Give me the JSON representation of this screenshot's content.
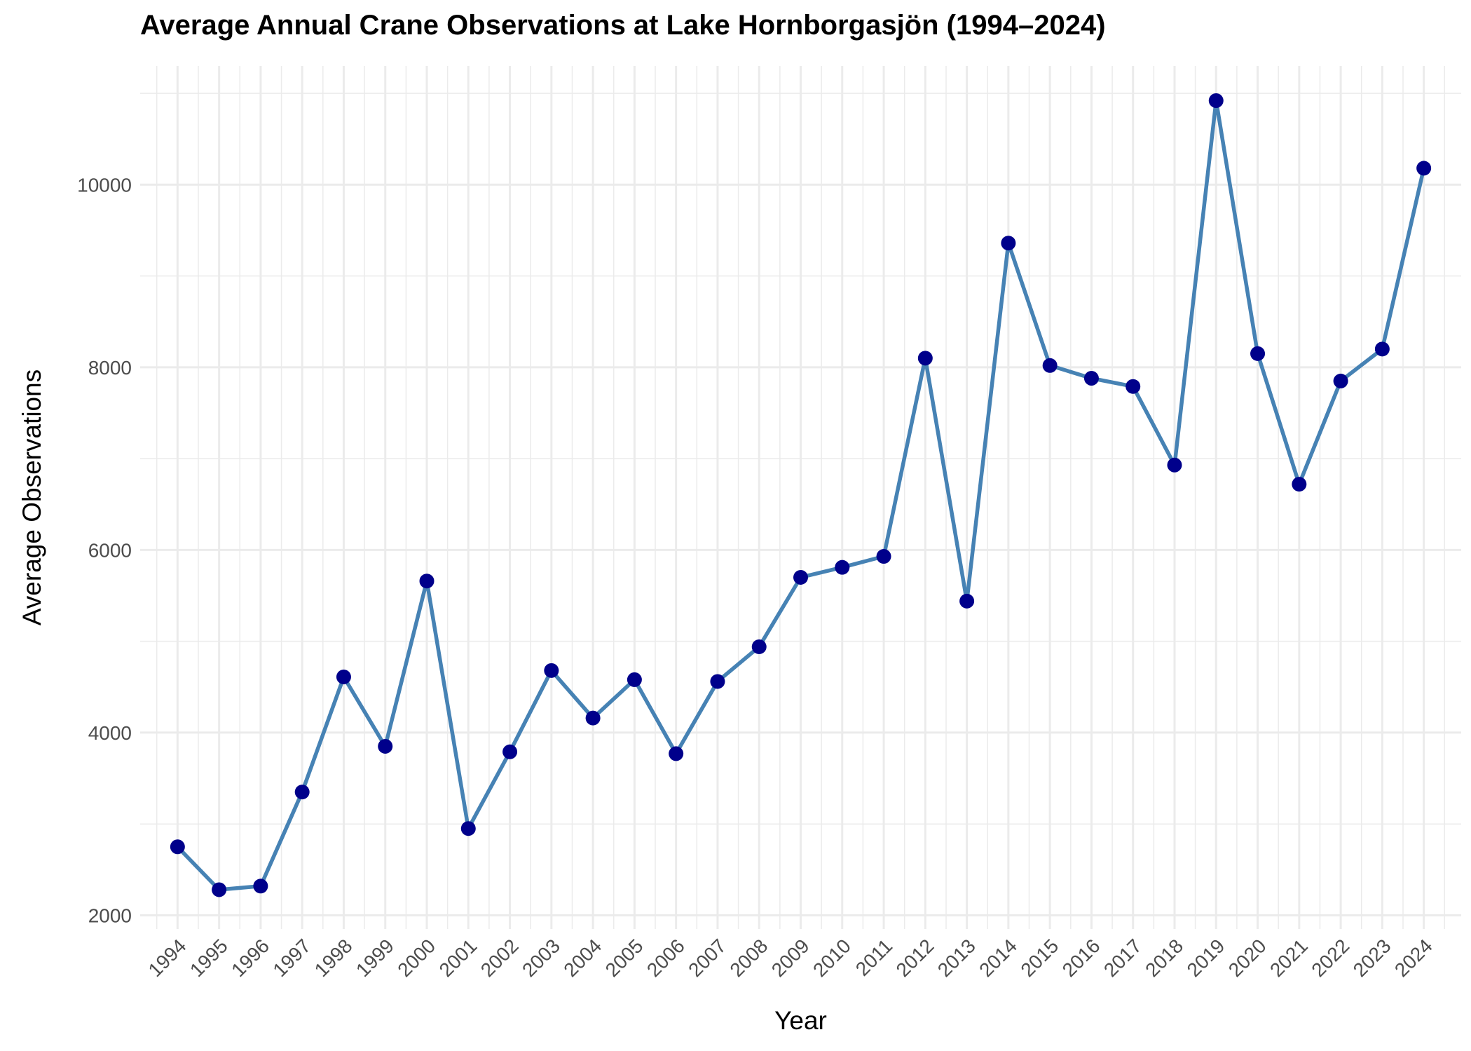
{
  "chart_data": {
    "type": "line",
    "title": "Average Annual Crane Observations at Lake Hornborgasjön (1994–2024)",
    "xlabel": "Year",
    "ylabel": "Average Observations",
    "x": [
      1994,
      1995,
      1996,
      1997,
      1998,
      1999,
      2000,
      2001,
      2002,
      2003,
      2004,
      2005,
      2006,
      2007,
      2008,
      2009,
      2010,
      2011,
      2012,
      2013,
      2014,
      2015,
      2016,
      2017,
      2018,
      2019,
      2020,
      2021,
      2022,
      2023,
      2024
    ],
    "series": [
      {
        "values": [
          2750,
          2280,
          2320,
          3350,
          4610,
          3850,
          5660,
          2950,
          3790,
          4680,
          4160,
          4580,
          3770,
          4560,
          4940,
          5700,
          5810,
          5930,
          8100,
          5440,
          9360,
          8020,
          7880,
          7790,
          6930,
          10920,
          8150,
          6720,
          7850,
          8200,
          10180
        ]
      }
    ],
    "xlim": [
      1993.1,
      2024.9
    ],
    "ylim": [
      1850,
      11300
    ],
    "yticks": [
      2000,
      4000,
      6000,
      8000,
      10000
    ],
    "grid": true,
    "legend": "none",
    "colors": {
      "line": "#4682b4",
      "point": "#00008b",
      "grid": "#ebebeb"
    }
  }
}
